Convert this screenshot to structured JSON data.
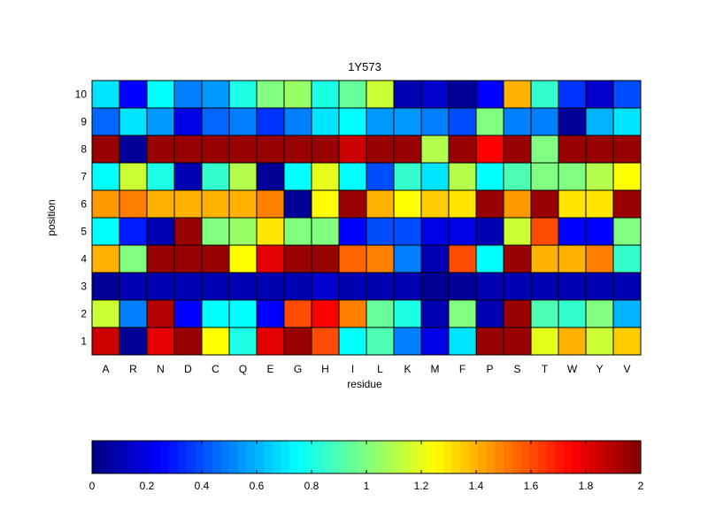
{
  "chart_data": {
    "type": "heatmap",
    "title": "1Y573",
    "xlabel": "residue",
    "ylabel": "position",
    "x_categories": [
      "A",
      "R",
      "N",
      "D",
      "C",
      "Q",
      "E",
      "G",
      "H",
      "I",
      "L",
      "K",
      "M",
      "F",
      "P",
      "S",
      "T",
      "W",
      "Y",
      "V"
    ],
    "y_categories": [
      "1",
      "2",
      "3",
      "4",
      "5",
      "6",
      "7",
      "8",
      "9",
      "10"
    ],
    "values_top_to_bottom": [
      [
        0.7,
        0.25,
        0.75,
        0.5,
        0.55,
        0.8,
        1.0,
        1.05,
        0.8,
        0.95,
        1.15,
        0.1,
        0.15,
        0.05,
        0.25,
        1.4,
        0.85,
        0.35,
        0.15,
        0.4
      ],
      [
        0.45,
        0.7,
        0.55,
        0.2,
        0.45,
        0.5,
        0.35,
        0.5,
        0.7,
        0.75,
        0.55,
        0.55,
        0.5,
        0.4,
        1.0,
        0.5,
        0.5,
        0.05,
        0.6,
        0.7
      ],
      [
        1.95,
        0.05,
        1.95,
        1.95,
        1.95,
        1.95,
        1.95,
        1.95,
        1.95,
        1.85,
        1.95,
        1.95,
        1.1,
        1.95,
        1.75,
        1.95,
        1.0,
        1.95,
        1.95,
        1.95
      ],
      [
        0.75,
        1.15,
        0.8,
        0.1,
        0.85,
        1.1,
        0.05,
        0.75,
        1.2,
        0.75,
        0.4,
        0.85,
        0.7,
        1.1,
        0.75,
        0.9,
        1.0,
        1.0,
        1.1,
        1.25
      ],
      [
        1.45,
        1.5,
        1.4,
        1.4,
        1.4,
        1.4,
        1.5,
        0.05,
        1.25,
        1.95,
        1.4,
        1.25,
        1.35,
        1.3,
        1.95,
        1.45,
        1.95,
        1.3,
        1.3,
        1.95
      ],
      [
        0.75,
        0.3,
        0.1,
        1.95,
        1.0,
        1.05,
        1.3,
        1.0,
        1.0,
        0.25,
        0.4,
        0.4,
        0.2,
        0.2,
        0.1,
        1.15,
        1.6,
        0.25,
        0.25,
        1.0
      ],
      [
        1.4,
        1.0,
        1.95,
        1.95,
        1.95,
        1.25,
        1.8,
        1.95,
        1.95,
        1.55,
        1.5,
        0.5,
        0.1,
        1.6,
        0.75,
        1.95,
        1.4,
        1.4,
        1.5,
        0.85
      ],
      [
        0.05,
        0.1,
        0.1,
        0.1,
        0.1,
        0.1,
        0.1,
        0.1,
        0.15,
        0.1,
        0.1,
        0.1,
        0.05,
        0.05,
        0.1,
        0.1,
        0.1,
        0.1,
        0.1,
        0.1
      ],
      [
        1.15,
        0.5,
        1.9,
        0.25,
        0.75,
        0.75,
        0.25,
        1.6,
        1.75,
        1.5,
        0.95,
        0.8,
        0.1,
        1.0,
        0.1,
        1.95,
        0.9,
        0.85,
        1.0,
        0.6
      ],
      [
        1.85,
        0.05,
        1.8,
        1.95,
        1.25,
        0.8,
        1.8,
        1.95,
        1.6,
        0.75,
        0.9,
        0.5,
        0.2,
        0.7,
        1.95,
        1.95,
        1.2,
        1.4,
        1.15,
        1.35
      ]
    ],
    "colorbar": {
      "range": [
        0,
        2
      ],
      "tick_labels": [
        "0",
        "0.2",
        "0.4",
        "0.6",
        "0.8",
        "1",
        "1.2",
        "1.4",
        "1.6",
        "1.8",
        "2"
      ],
      "colormap": "jet"
    },
    "grid": true
  }
}
